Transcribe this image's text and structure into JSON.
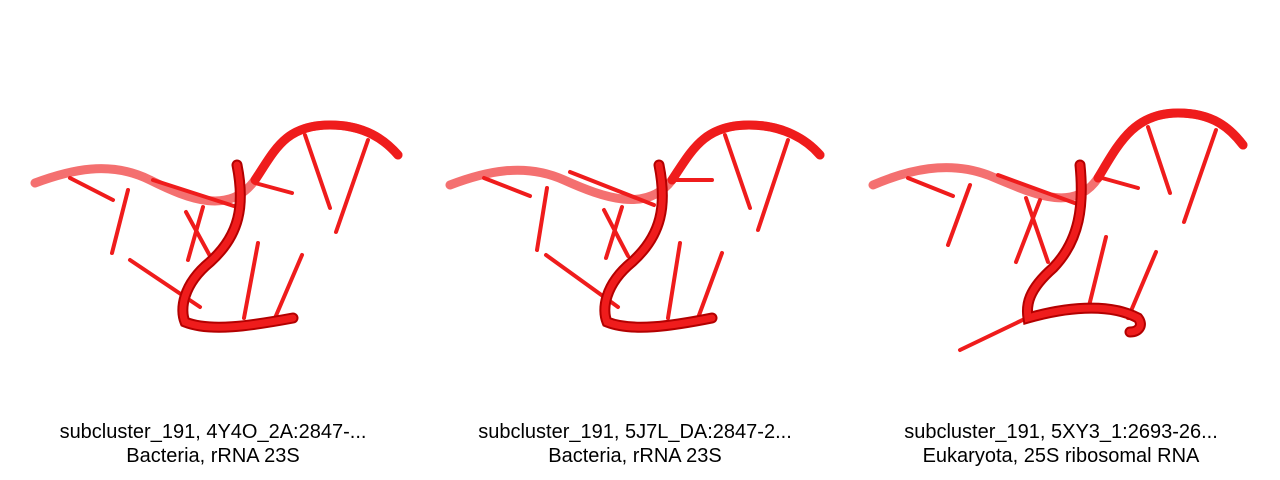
{
  "colors": {
    "strand": "#ef1c1c",
    "strand_dark": "#b30000",
    "strand_light": "#f47070"
  },
  "panels": [
    {
      "line1": "subcluster_191, 4Y4O_2A:2847-...",
      "line2": "Bacteria, rRNA 23S"
    },
    {
      "line1": "subcluster_191, 5J7L_DA:2847-2...",
      "line2": "Bacteria, rRNA 23S"
    },
    {
      "line1": "subcluster_191, 5XY3_1:2693-26...",
      "line2": "Eukaryota, 25S ribosomal RNA"
    }
  ]
}
